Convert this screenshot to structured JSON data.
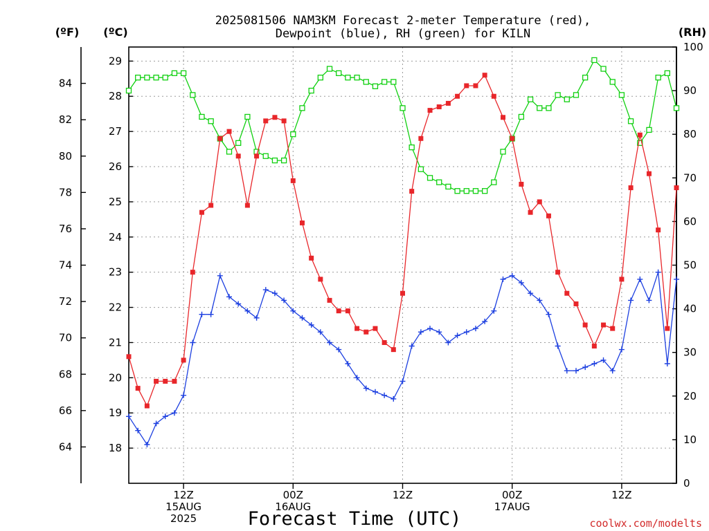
{
  "title_line1": "2025081506 NAM3KM Forecast 2-meter Temperature (red),",
  "title_line2": "Dewpoint (blue), RH (green) for KILN",
  "unit_f": "(ºF)",
  "unit_c": "(ºC)",
  "unit_rh": "(RH)",
  "xlabel": "Forecast Time (UTC)",
  "credit": "coolwx.com/modelts",
  "colors": {
    "temperature": "#e8262a",
    "dewpoint": "#1c3fe0",
    "rh": "#10d010",
    "credit": "#d22a2a"
  },
  "chart_data": {
    "type": "line",
    "title": "2025081506 NAM3KM Forecast 2-meter Temperature (red), Dewpoint (blue), RH (green) for KILN",
    "xlabel": "Forecast Time (UTC)",
    "x_start_hour": 6,
    "x_step_hours": 1,
    "x_range_hours": [
      6,
      66
    ],
    "x_ticks": [
      {
        "hour": 12,
        "lines": [
          "12Z",
          "15AUG",
          "2025"
        ]
      },
      {
        "hour": 24,
        "lines": [
          "00Z",
          "16AUG"
        ]
      },
      {
        "hour": 36,
        "lines": [
          "12Z"
        ]
      },
      {
        "hour": 48,
        "lines": [
          "00Z",
          "17AUG"
        ]
      },
      {
        "hour": 60,
        "lines": [
          "12Z"
        ]
      }
    ],
    "y_left_f": {
      "label": "(ºF)",
      "range": [
        62,
        86
      ],
      "ticks": [
        64,
        66,
        68,
        70,
        72,
        74,
        76,
        78,
        80,
        82,
        84
      ]
    },
    "y_left_c": {
      "label": "(ºC)",
      "range": [
        17,
        29.4
      ],
      "ticks": [
        18,
        19,
        20,
        21,
        22,
        23,
        24,
        25,
        26,
        27,
        28,
        29
      ]
    },
    "y_right_rh": {
      "label": "(RH)",
      "range": [
        0,
        100
      ],
      "ticks": [
        0,
        10,
        20,
        30,
        40,
        50,
        60,
        70,
        80,
        90,
        100
      ]
    },
    "grid": true,
    "series": [
      {
        "key": "temperature",
        "axis": "c",
        "marker": "filled-square",
        "values": [
          20.6,
          19.7,
          19.2,
          19.9,
          19.9,
          19.9,
          20.5,
          23.0,
          24.7,
          24.9,
          26.8,
          27.0,
          26.3,
          24.9,
          26.3,
          27.3,
          27.4,
          27.3,
          25.6,
          24.4,
          23.4,
          22.8,
          22.2,
          21.9,
          21.9,
          21.4,
          21.3,
          21.4,
          21.0,
          20.8,
          22.4,
          25.3,
          26.8,
          27.6,
          27.7,
          27.8,
          28.0,
          28.3,
          28.3,
          28.6,
          28.0,
          27.4,
          26.8,
          25.5,
          24.7,
          25.0,
          24.6,
          23.0,
          22.4,
          22.1,
          21.5,
          20.9,
          21.5,
          21.4,
          22.8,
          25.4,
          26.9,
          25.8,
          24.2,
          21.4,
          25.4
        ]
      },
      {
        "key": "dewpoint",
        "axis": "c",
        "marker": "plus",
        "values": [
          18.9,
          18.5,
          18.1,
          18.7,
          18.9,
          19.0,
          19.5,
          21.0,
          21.8,
          21.8,
          22.9,
          22.3,
          22.1,
          21.9,
          21.7,
          22.5,
          22.4,
          22.2,
          21.9,
          21.7,
          21.5,
          21.3,
          21.0,
          20.8,
          20.4,
          20.0,
          19.7,
          19.6,
          19.5,
          19.4,
          19.9,
          20.9,
          21.3,
          21.4,
          21.3,
          21.0,
          21.2,
          21.3,
          21.4,
          21.6,
          21.9,
          22.8,
          22.9,
          22.7,
          22.4,
          22.2,
          21.8,
          20.9,
          20.2,
          20.2,
          20.3,
          20.4,
          20.5,
          20.2,
          20.8,
          22.2,
          22.8,
          22.2,
          23.0,
          20.4,
          22.8
        ]
      },
      {
        "key": "rh",
        "axis": "rh",
        "marker": "open-square",
        "values": [
          90,
          93,
          93,
          93,
          93,
          94,
          94,
          89,
          84,
          83,
          79,
          76,
          78,
          84,
          76,
          75,
          74,
          74,
          80,
          86,
          90,
          93,
          95,
          94,
          93,
          93,
          92,
          91,
          92,
          92,
          86,
          77,
          72,
          70,
          69,
          68,
          67,
          67,
          67,
          67,
          69,
          76,
          79,
          84,
          88,
          86,
          86,
          89,
          88,
          89,
          93,
          97,
          95,
          92,
          89,
          83,
          78,
          81,
          93,
          94,
          86
        ]
      }
    ]
  }
}
